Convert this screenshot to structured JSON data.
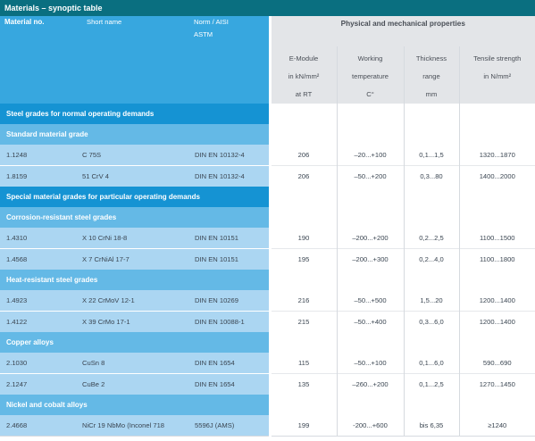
{
  "title": "Materials – synoptic table",
  "header": {
    "material_no": "Material no.",
    "short_name": "Short name",
    "norm_line1": "Norm / AISI",
    "norm_line2": "ASTM",
    "properties_title": "Physical and mechanical properties",
    "col_emodule": [
      "E-Module",
      "in kN/mm²",
      "at RT"
    ],
    "col_working": [
      "Working",
      "temperature",
      "C°"
    ],
    "col_thickness": [
      "Thickness",
      "range",
      "mm"
    ],
    "col_tensile": [
      "Tensile strength",
      "in N/mm²",
      ""
    ]
  },
  "groups": [
    {
      "label": "Steel grades for normal operating demands",
      "subgroups": [
        {
          "label": "Standard material grade",
          "rows": [
            {
              "material_no": "1.1248",
              "short_name": "C 75S",
              "norm": "DIN EN 10132-4",
              "emodule": "206",
              "working_temp": "–20...+100",
              "thickness": "0,1...1,5",
              "tensile": "1320...1870"
            },
            {
              "material_no": "1.8159",
              "short_name": "51 CrV 4",
              "norm": "DIN EN 10132-4",
              "emodule": "206",
              "working_temp": "–50...+200",
              "thickness": "0,3...80",
              "tensile": "1400...2000"
            }
          ]
        }
      ]
    },
    {
      "label": "Special material grades for particular operating demands",
      "subgroups": [
        {
          "label": "Corrosion-resistant steel grades",
          "rows": [
            {
              "material_no": "1.4310",
              "short_name": "X 10 CrNi 18-8",
              "norm": "DIN EN 10151",
              "emodule": "190",
              "working_temp": "–200...+200",
              "thickness": "0,2...2,5",
              "tensile": "1100...1500"
            },
            {
              "material_no": "1.4568",
              "short_name": "X 7 CrNiAl 17-7",
              "norm": "DIN EN 10151",
              "emodule": "195",
              "working_temp": "–200...+300",
              "thickness": "0,2...4,0",
              "tensile": "1100...1800"
            }
          ]
        },
        {
          "label": "Heat-resistant steel grades",
          "rows": [
            {
              "material_no": "1.4923",
              "short_name": "X 22 CrMoV 12-1",
              "norm": "DIN EN 10269",
              "emodule": "216",
              "working_temp": "–50...+500",
              "thickness": "1,5...20",
              "tensile": "1200...1400"
            },
            {
              "material_no": "1.4122",
              "short_name": "X 39 CrMo 17-1",
              "norm": "DIN EN 10088-1",
              "emodule": "215",
              "working_temp": "–50...+400",
              "thickness": "0,3...6,0",
              "tensile": "1200...1400"
            }
          ]
        },
        {
          "label": "Copper alloys",
          "rows": [
            {
              "material_no": "2.1030",
              "short_name": "CuSn 8",
              "norm": "DIN EN 1654",
              "emodule": "115",
              "working_temp": "–50...+100",
              "thickness": "0,1...6,0",
              "tensile": "590...690"
            },
            {
              "material_no": "2.1247",
              "short_name": "CuBe 2",
              "norm": "DIN EN 1654",
              "emodule": "135",
              "working_temp": "–260...+200",
              "thickness": "0,1...2,5",
              "tensile": "1270...1450"
            }
          ]
        },
        {
          "label": "Nickel and cobalt alloys",
          "rows": [
            {
              "material_no": "2.4668",
              "short_name": "NiCr 19 NbMo (Inconel 718",
              "norm": "5596J (AMS)",
              "emodule": "199",
              "working_temp": "-200...+600",
              "thickness": "bis 6,35",
              "tensile": "≥1240"
            }
          ]
        }
      ]
    }
  ],
  "colors": {
    "title_bar": "#0a6f80",
    "header_left": "#37a7df",
    "header_right": "#e3e5e8",
    "group_band": "#1593d3",
    "subgroup_band": "#64b9e6",
    "row_left": "#abd6f2"
  }
}
